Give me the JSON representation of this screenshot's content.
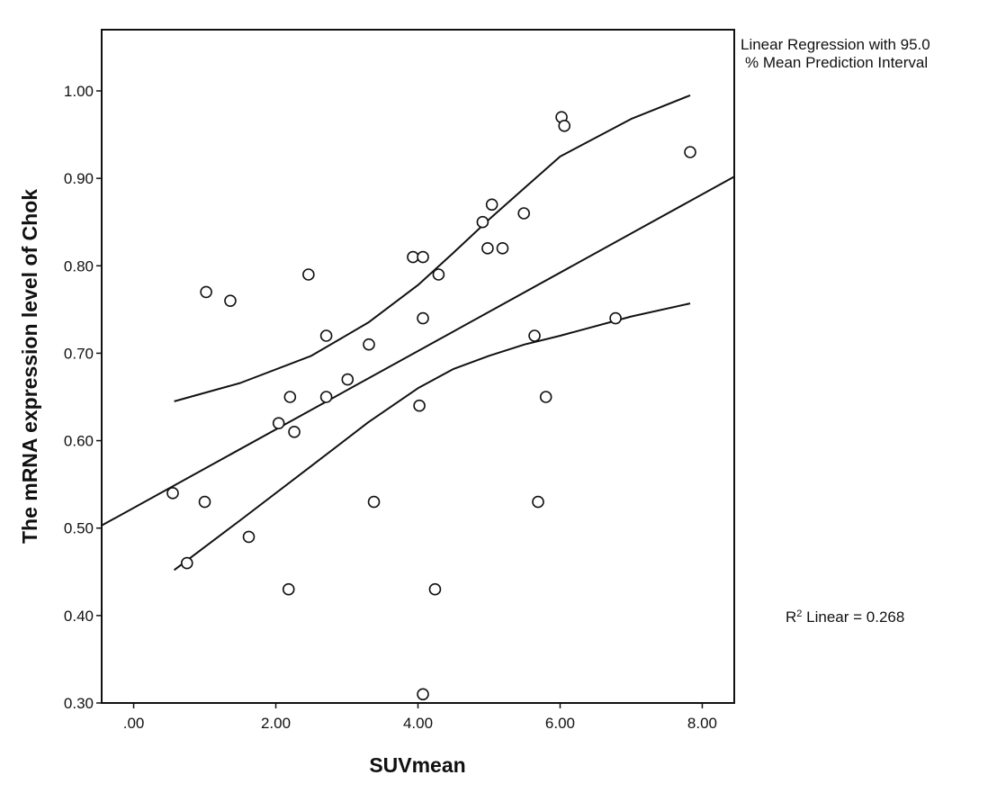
{
  "chart_data": {
    "type": "scatter",
    "title": "",
    "xlabel": "SUVmean",
    "ylabel": "The mRNA expression level of Chok",
    "xlim": [
      -0.45,
      8.45
    ],
    "ylim": [
      0.3,
      1.07
    ],
    "x_ticks": [
      0,
      2,
      4,
      6,
      8
    ],
    "x_tick_labels": [
      ".00",
      "2.00",
      "4.00",
      "6.00",
      "8.00"
    ],
    "y_ticks": [
      0.3,
      0.4,
      0.5,
      0.6,
      0.7,
      0.8,
      0.9,
      1.0
    ],
    "y_tick_labels": [
      "0.30",
      "0.40",
      "0.50",
      "0.60",
      "0.70",
      "0.80",
      "0.90",
      "1.00"
    ],
    "grid": false,
    "legend_text": [
      "Linear Regression with 95.0",
      "% Mean Prediction Interval"
    ],
    "r2_text": [
      "R",
      "2",
      " Linear = 0.268"
    ],
    "points": [
      {
        "x": 0.55,
        "y": 0.54
      },
      {
        "x": 0.75,
        "y": 0.46
      },
      {
        "x": 1.0,
        "y": 0.53
      },
      {
        "x": 1.02,
        "y": 0.77
      },
      {
        "x": 1.36,
        "y": 0.76
      },
      {
        "x": 1.62,
        "y": 0.49
      },
      {
        "x": 2.04,
        "y": 0.62
      },
      {
        "x": 2.18,
        "y": 0.43
      },
      {
        "x": 2.2,
        "y": 0.65
      },
      {
        "x": 2.26,
        "y": 0.61
      },
      {
        "x": 2.46,
        "y": 0.79
      },
      {
        "x": 2.71,
        "y": 0.72
      },
      {
        "x": 2.71,
        "y": 0.65
      },
      {
        "x": 3.01,
        "y": 0.67
      },
      {
        "x": 3.31,
        "y": 0.71
      },
      {
        "x": 3.38,
        "y": 0.53
      },
      {
        "x": 3.93,
        "y": 0.81
      },
      {
        "x": 4.02,
        "y": 0.64
      },
      {
        "x": 4.07,
        "y": 0.81
      },
      {
        "x": 4.07,
        "y": 0.74
      },
      {
        "x": 4.07,
        "y": 0.31
      },
      {
        "x": 4.24,
        "y": 0.43
      },
      {
        "x": 4.29,
        "y": 0.79
      },
      {
        "x": 4.91,
        "y": 0.85
      },
      {
        "x": 4.98,
        "y": 0.82
      },
      {
        "x": 5.04,
        "y": 0.87
      },
      {
        "x": 5.19,
        "y": 0.82
      },
      {
        "x": 5.49,
        "y": 0.86
      },
      {
        "x": 5.64,
        "y": 0.72
      },
      {
        "x": 5.69,
        "y": 0.53
      },
      {
        "x": 5.8,
        "y": 0.65
      },
      {
        "x": 6.02,
        "y": 0.97
      },
      {
        "x": 6.06,
        "y": 0.96
      },
      {
        "x": 6.78,
        "y": 0.74
      },
      {
        "x": 7.83,
        "y": 0.93
      }
    ],
    "fit_line": {
      "x": [
        -0.45,
        8.45
      ],
      "y": [
        0.503,
        0.902
      ]
    },
    "upper_band": {
      "x": [
        0.57,
        1.5,
        2.5,
        3.3,
        4.0,
        4.5,
        5.0,
        5.5,
        6.0,
        7.0,
        7.83
      ],
      "y": [
        0.645,
        0.666,
        0.697,
        0.735,
        0.778,
        0.815,
        0.853,
        0.889,
        0.925,
        0.968,
        0.995
      ]
    },
    "lower_band": {
      "x": [
        0.57,
        1.5,
        2.5,
        3.3,
        4.0,
        4.5,
        5.0,
        5.5,
        6.0,
        7.0,
        7.83
      ],
      "y": [
        0.452,
        0.509,
        0.571,
        0.621,
        0.66,
        0.682,
        0.697,
        0.71,
        0.72,
        0.742,
        0.757
      ]
    }
  }
}
